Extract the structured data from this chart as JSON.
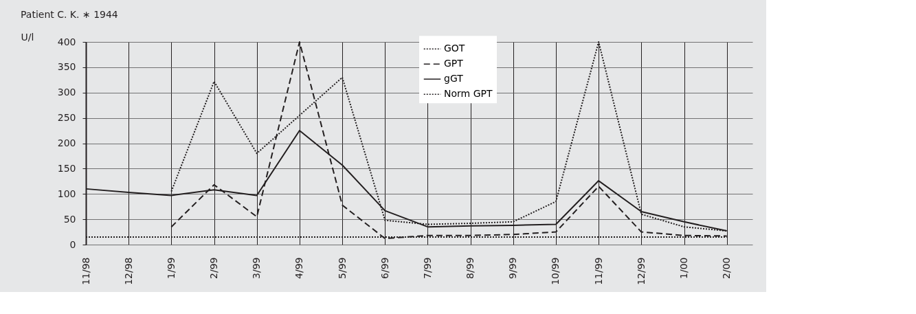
{
  "chart_data": {
    "type": "line",
    "title": "Patient C. K. ∗ 1944",
    "ylabel": "U/l",
    "categories": [
      "11/98",
      "12/98",
      "1/99",
      "2/99",
      "3/99",
      "4/99",
      "5/99",
      "6/99",
      "7/99",
      "8/99",
      "9/99",
      "10/99",
      "11/99",
      "12/99",
      "1/00",
      "2/00"
    ],
    "series": [
      {
        "name": "GOT",
        "color": "#231f20",
        "line_style": "dotted",
        "values": [
          null,
          null,
          105,
          322,
          180,
          null,
          330,
          48,
          40,
          42,
          45,
          85,
          400,
          60,
          35,
          27
        ]
      },
      {
        "name": "GPT",
        "color": "#231f20",
        "line_style": "dashed",
        "values": [
          null,
          null,
          35,
          118,
          55,
          400,
          78,
          12,
          18,
          18,
          20,
          25,
          115,
          25,
          18,
          17
        ]
      },
      {
        "name": "gGT",
        "color": "#231f20",
        "line_style": "solid",
        "values": [
          110,
          103,
          97,
          108,
          97,
          225,
          157,
          67,
          35,
          37,
          38,
          40,
          126,
          65,
          45,
          27
        ]
      },
      {
        "name": "Norm GPT",
        "color": "#231f20",
        "line_style": "dotted",
        "values": [
          15,
          15,
          15,
          15,
          15,
          15,
          15,
          15,
          15,
          15,
          15,
          15,
          15,
          15,
          15,
          15
        ]
      }
    ],
    "ylim": [
      0,
      400
    ],
    "yticks": [
      0,
      50,
      100,
      150,
      200,
      250,
      300,
      350,
      400
    ],
    "grid": true,
    "legend": "top",
    "marker": "none"
  }
}
